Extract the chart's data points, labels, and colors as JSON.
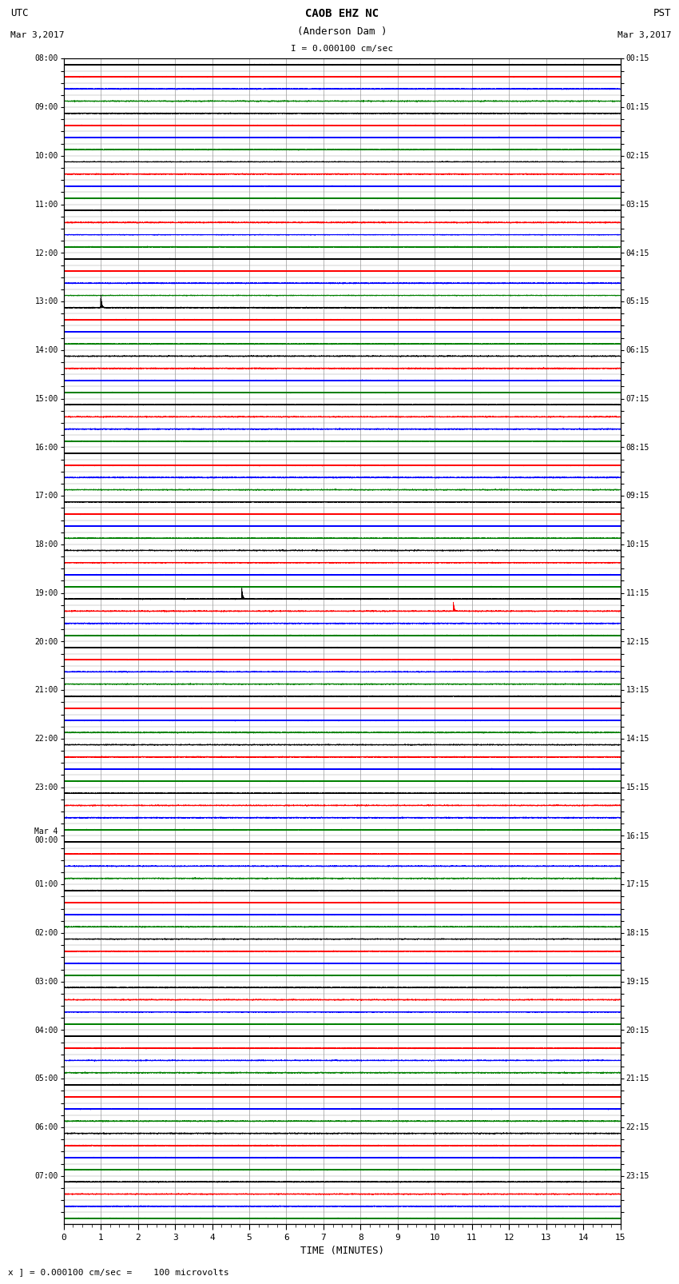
{
  "title_line1": "CAOB EHZ NC",
  "title_line2": "(Anderson Dam )",
  "scale_label": "I = 0.000100 cm/sec",
  "utc_label": "UTC",
  "utc_date": "Mar 3,2017",
  "pst_label": "PST",
  "pst_date": "Mar 3,2017",
  "footer_label": "x ] = 0.000100 cm/sec =    100 microvolts",
  "xlabel": "TIME (MINUTES)",
  "xmin": 0,
  "xmax": 15,
  "xticks_major": [
    0,
    1,
    2,
    3,
    4,
    5,
    6,
    7,
    8,
    9,
    10,
    11,
    12,
    13,
    14,
    15
  ],
  "bg_color": "#ffffff",
  "trace_colors": [
    "black",
    "red",
    "blue",
    "green"
  ],
  "n_rows": 96,
  "noise_amplitude": 0.08,
  "utc_row_labels": [
    "08:00",
    "",
    "",
    "",
    "09:00",
    "",
    "",
    "",
    "10:00",
    "",
    "",
    "",
    "11:00",
    "",
    "",
    "",
    "12:00",
    "",
    "",
    "",
    "13:00",
    "",
    "",
    "",
    "14:00",
    "",
    "",
    "",
    "15:00",
    "",
    "",
    "",
    "16:00",
    "",
    "",
    "",
    "17:00",
    "",
    "",
    "",
    "18:00",
    "",
    "",
    "",
    "19:00",
    "",
    "",
    "",
    "20:00",
    "",
    "",
    "",
    "21:00",
    "",
    "",
    "",
    "22:00",
    "",
    "",
    "",
    "23:00",
    "",
    "",
    "",
    "Mar 4\n00:00",
    "",
    "",
    "",
    "01:00",
    "",
    "",
    "",
    "02:00",
    "",
    "",
    "",
    "03:00",
    "",
    "",
    "",
    "04:00",
    "",
    "",
    "",
    "05:00",
    "",
    "",
    "",
    "06:00",
    "",
    "",
    "",
    "07:00",
    "",
    "",
    ""
  ],
  "pst_row_labels": [
    "00:15",
    "",
    "",
    "",
    "01:15",
    "",
    "",
    "",
    "02:15",
    "",
    "",
    "",
    "03:15",
    "",
    "",
    "",
    "04:15",
    "",
    "",
    "",
    "05:15",
    "",
    "",
    "",
    "06:15",
    "",
    "",
    "",
    "07:15",
    "",
    "",
    "",
    "08:15",
    "",
    "",
    "",
    "09:15",
    "",
    "",
    "",
    "10:15",
    "",
    "",
    "",
    "11:15",
    "",
    "",
    "",
    "12:15",
    "",
    "",
    "",
    "13:15",
    "",
    "",
    "",
    "14:15",
    "",
    "",
    "",
    "15:15",
    "",
    "",
    "",
    "16:15",
    "",
    "",
    "",
    "17:15",
    "",
    "",
    "",
    "18:15",
    "",
    "",
    "",
    "19:15",
    "",
    "",
    "",
    "20:15",
    "",
    "",
    "",
    "21:15",
    "",
    "",
    "",
    "22:15",
    "",
    "",
    "",
    "23:15",
    "",
    "",
    ""
  ],
  "grid_color": "#999999",
  "figsize": [
    8.5,
    16.13
  ],
  "dpi": 100,
  "sample_rate": 40,
  "minutes": 15,
  "event_rows": [
    20,
    44,
    45
  ],
  "event_times": [
    1.0,
    4.8,
    10.5
  ],
  "event_amps": [
    3.5,
    2.5,
    2.0
  ]
}
